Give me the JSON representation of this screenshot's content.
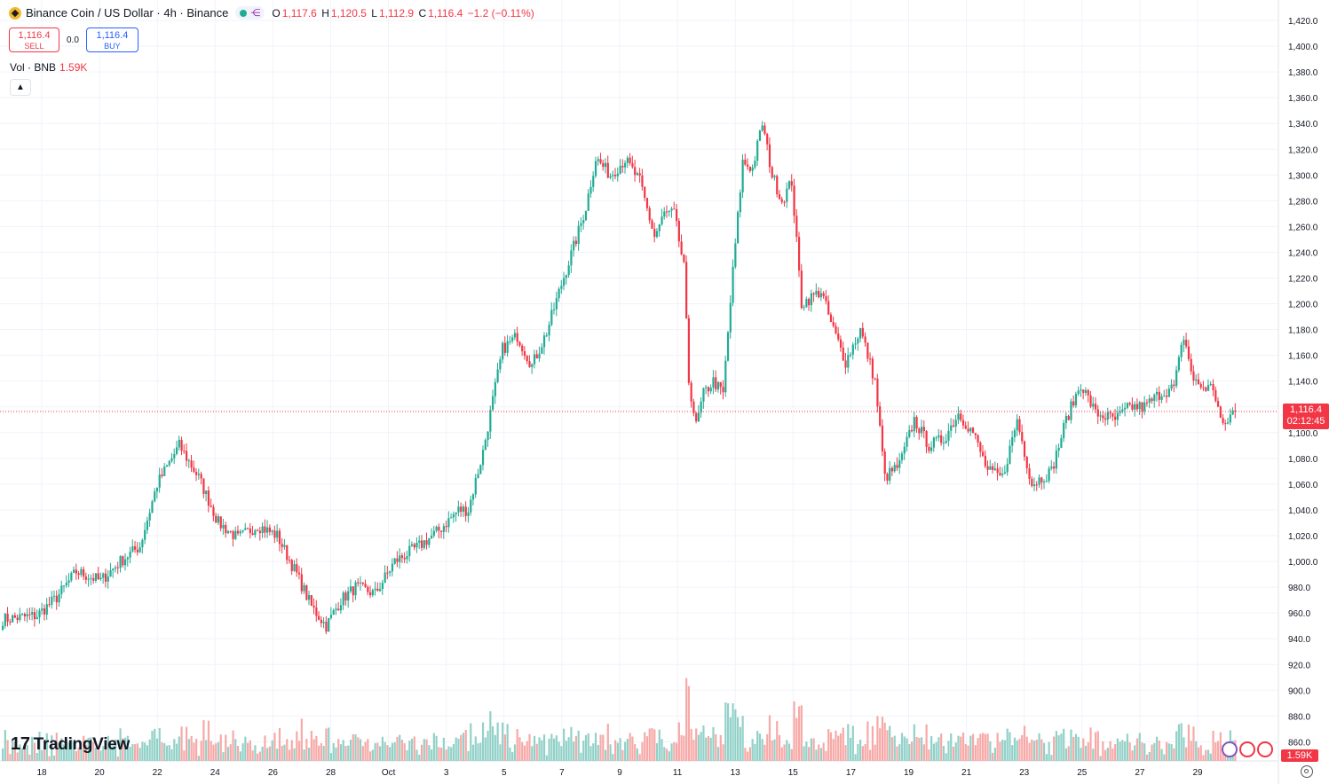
{
  "header": {
    "title": "Binance Coin / US Dollar · 4h · Binance",
    "ohlc": {
      "o_label": "O",
      "o": "1,117.6",
      "h_label": "H",
      "h": "1,120.5",
      "l_label": "L",
      "l": "1,112.9",
      "c_label": "C",
      "c": "1,116.4",
      "change": "−1.2 (−0.11%)"
    }
  },
  "trade": {
    "sell_price": "1,116.4",
    "sell_label": "SELL",
    "spread": "0.0",
    "buy_price": "1,116.4",
    "buy_label": "BUY"
  },
  "volume_legend": {
    "label": "Vol · BNB",
    "value": "1.59K"
  },
  "price_tag": {
    "price": "1,116.4",
    "countdown": "02:12:45"
  },
  "volume_tag": "1.59K",
  "branding": {
    "logo_text": "TradingView"
  },
  "icons": {
    "collapse": "chevron-up-icon",
    "settings": "gear-icon",
    "share": "share-icon"
  },
  "colors": {
    "up": "#22ab94",
    "down": "#f23645",
    "vol_up": "#92d1c8",
    "vol_down": "#f7a9a7",
    "grid": "#f0f3fa"
  },
  "chart_data": {
    "type": "candlestick",
    "interval": "4h",
    "y_ticks": [
      860,
      880,
      900,
      920,
      940,
      960,
      980,
      1000,
      1020,
      1040,
      1060,
      1080,
      1100,
      1120,
      1140,
      1160,
      1180,
      1200,
      1220,
      1240,
      1260,
      1280,
      1300,
      1320,
      1340,
      1360,
      1380,
      1400,
      1420
    ],
    "ylim": [
      836,
      1434
    ],
    "x_ticks": [
      "18",
      "20",
      "22",
      "24",
      "26",
      "28",
      "Oct",
      "3",
      "5",
      "7",
      "9",
      "11",
      "13",
      "15",
      "17",
      "19",
      "21",
      "23",
      "25",
      "27",
      "29"
    ],
    "anchors": [
      [
        0,
        955
      ],
      [
        14,
        958
      ],
      [
        22,
        972
      ],
      [
        30,
        992
      ],
      [
        40,
        985
      ],
      [
        48,
        1000
      ],
      [
        56,
        1012
      ],
      [
        63,
        1060
      ],
      [
        72,
        1090
      ],
      [
        80,
        1065
      ],
      [
        88,
        1030
      ],
      [
        96,
        1018
      ],
      [
        104,
        1028
      ],
      [
        112,
        1020
      ],
      [
        120,
        990
      ],
      [
        126,
        965
      ],
      [
        132,
        950
      ],
      [
        138,
        970
      ],
      [
        144,
        980
      ],
      [
        152,
        975
      ],
      [
        160,
        1000
      ],
      [
        170,
        1012
      ],
      [
        178,
        1024
      ],
      [
        186,
        1040
      ],
      [
        190,
        1040
      ],
      [
        196,
        1085
      ],
      [
        200,
        1125
      ],
      [
        204,
        1165
      ],
      [
        210,
        1175
      ],
      [
        216,
        1152
      ],
      [
        222,
        1178
      ],
      [
        228,
        1215
      ],
      [
        234,
        1250
      ],
      [
        238,
        1275
      ],
      [
        242,
        1313
      ],
      [
        248,
        1300
      ],
      [
        254,
        1312
      ],
      [
        260,
        1295
      ],
      [
        266,
        1252
      ],
      [
        270,
        1270
      ],
      [
        274,
        1270
      ],
      [
        278,
        1228
      ],
      [
        280,
        1140
      ],
      [
        283,
        1105
      ],
      [
        286,
        1130
      ],
      [
        290,
        1140
      ],
      [
        294,
        1130
      ],
      [
        298,
        1225
      ],
      [
        302,
        1310
      ],
      [
        306,
        1305
      ],
      [
        310,
        1340
      ],
      [
        314,
        1300
      ],
      [
        318,
        1280
      ],
      [
        322,
        1295
      ],
      [
        326,
        1200
      ],
      [
        330,
        1205
      ],
      [
        334,
        1210
      ],
      [
        338,
        1185
      ],
      [
        344,
        1155
      ],
      [
        350,
        1180
      ],
      [
        356,
        1140
      ],
      [
        360,
        1065
      ],
      [
        366,
        1075
      ],
      [
        372,
        1110
      ],
      [
        378,
        1090
      ],
      [
        384,
        1095
      ],
      [
        390,
        1115
      ],
      [
        396,
        1100
      ],
      [
        402,
        1070
      ],
      [
        408,
        1065
      ],
      [
        414,
        1110
      ],
      [
        420,
        1060
      ],
      [
        428,
        1070
      ],
      [
        434,
        1110
      ],
      [
        440,
        1138
      ],
      [
        446,
        1115
      ],
      [
        454,
        1110
      ],
      [
        460,
        1120
      ],
      [
        466,
        1120
      ],
      [
        472,
        1130
      ],
      [
        478,
        1135
      ],
      [
        482,
        1175
      ],
      [
        486,
        1140
      ],
      [
        490,
        1135
      ],
      [
        494,
        1135
      ],
      [
        498,
        1103
      ],
      [
        502,
        1116.4
      ]
    ],
    "n_candles": 504,
    "volume_axis": "Vol · BNB",
    "last_price": 1116.4
  }
}
